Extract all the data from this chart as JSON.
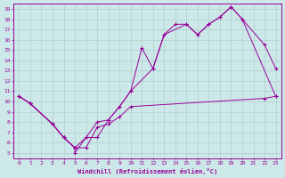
{
  "xlabel": "Windchill (Refroidissement éolien,°C)",
  "xlim": [
    -0.5,
    23.5
  ],
  "ylim": [
    4.5,
    19.5
  ],
  "xticks": [
    0,
    1,
    2,
    3,
    4,
    5,
    6,
    7,
    8,
    9,
    10,
    11,
    12,
    13,
    14,
    15,
    16,
    17,
    18,
    19,
    20,
    21,
    22,
    23
  ],
  "yticks": [
    5,
    6,
    7,
    8,
    9,
    10,
    11,
    12,
    13,
    14,
    15,
    16,
    17,
    18,
    19
  ],
  "bg_color": "#cce8e8",
  "line_color": "#990099",
  "grid_color": "#b0d0d0",
  "line1": {
    "x": [
      0,
      1,
      3,
      4,
      5,
      6,
      7,
      8,
      9,
      10,
      22,
      23
    ],
    "y": [
      10.5,
      9.8,
      7.8,
      6.5,
      5.5,
      5.5,
      7.5,
      7.8,
      8.5,
      9.5,
      10.3,
      10.5
    ]
  },
  "line2": {
    "x": [
      0,
      1,
      3,
      4,
      5,
      5,
      6,
      7,
      8,
      9,
      10,
      11,
      12,
      13,
      14,
      15,
      16,
      17,
      18,
      19,
      20,
      22,
      23
    ],
    "y": [
      10.5,
      9.8,
      7.8,
      6.5,
      5.5,
      5.0,
      6.5,
      6.5,
      8.2,
      9.5,
      11.0,
      15.2,
      13.2,
      16.5,
      17.5,
      17.5,
      16.5,
      17.5,
      18.2,
      19.2,
      18.0,
      15.5,
      13.2
    ]
  },
  "line3": {
    "x": [
      0,
      1,
      3,
      4,
      5,
      6,
      7,
      8,
      9,
      10,
      12,
      13,
      15,
      16,
      17,
      18,
      19,
      20,
      23
    ],
    "y": [
      10.5,
      9.8,
      7.8,
      6.5,
      5.5,
      6.5,
      8.0,
      8.2,
      9.5,
      11.0,
      13.2,
      16.5,
      17.5,
      16.5,
      17.5,
      18.2,
      19.2,
      18.0,
      10.5
    ]
  }
}
